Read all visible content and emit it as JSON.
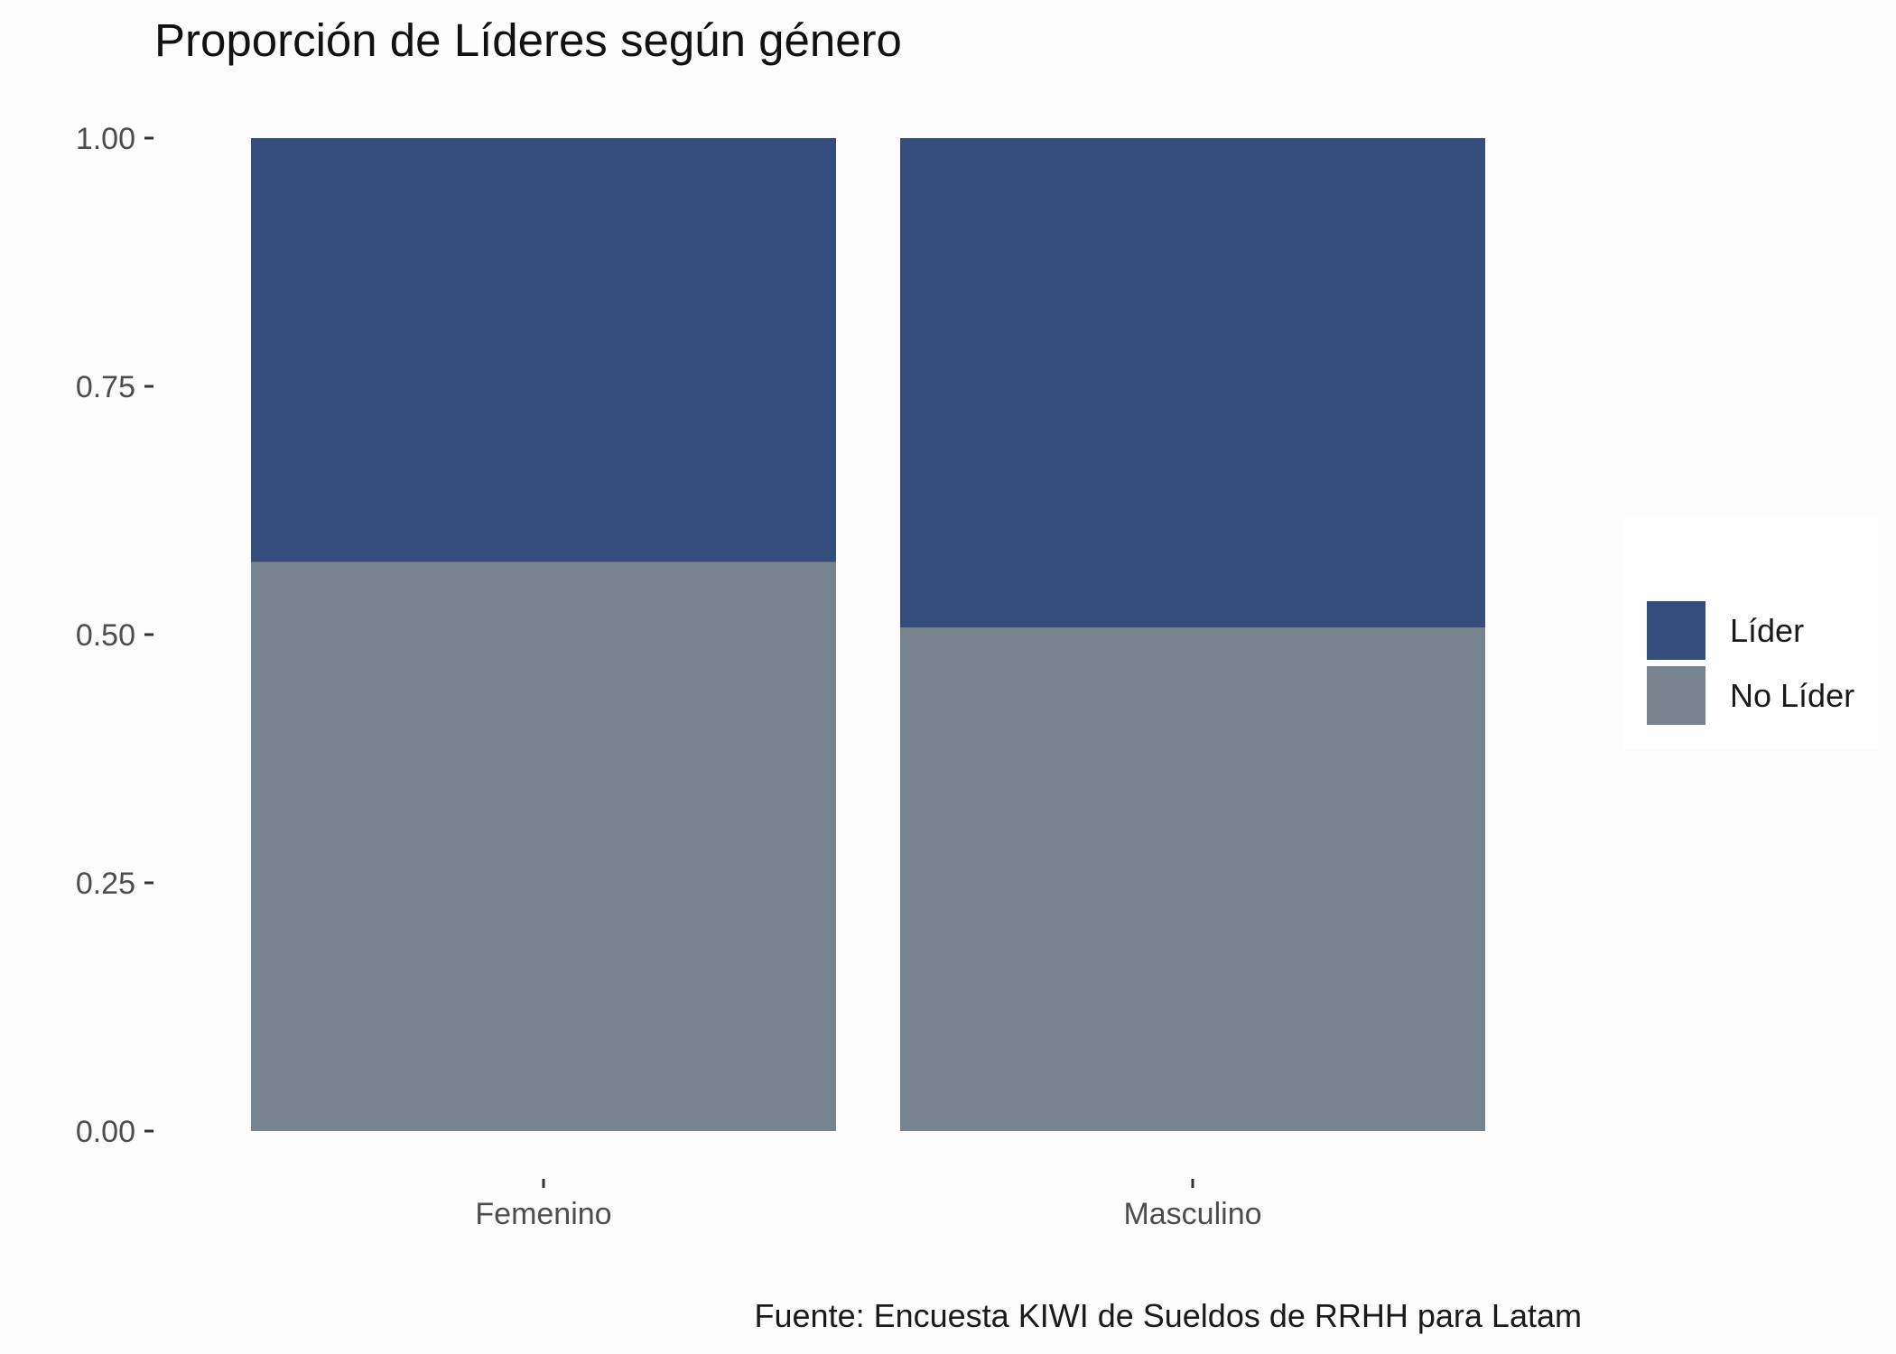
{
  "chart_data": {
    "type": "bar",
    "stacked": true,
    "title": "Proporción de Líderes según género",
    "caption": "Fuente: Encuesta KIWI de Sueldos de RRHH para Latam",
    "xlabel": "",
    "ylabel": "",
    "categories": [
      "Femenino",
      "Masculino"
    ],
    "ylim": [
      0,
      1
    ],
    "y_ticks": [
      "0.00",
      "0.25",
      "0.50",
      "0.75",
      "1.00"
    ],
    "grid": false,
    "legend_position": "right",
    "series": [
      {
        "name": "No Líder",
        "color": "#77838d",
        "values": [
          0.573,
          0.507
        ]
      },
      {
        "name": "Líder",
        "color": "#354d7c",
        "values": [
          0.427,
          0.493
        ]
      }
    ],
    "legend_order": [
      "Líder",
      "No Líder"
    ]
  }
}
